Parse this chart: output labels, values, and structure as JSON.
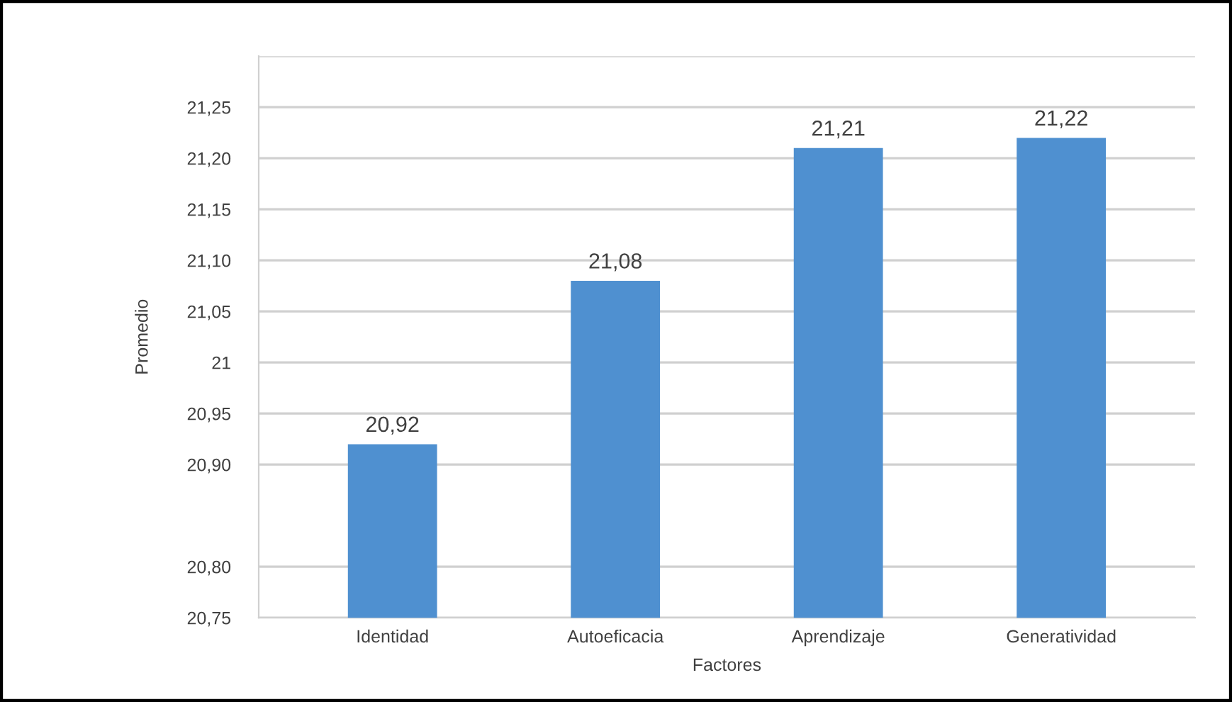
{
  "chart_data": {
    "type": "bar",
    "xlabel": "Factores",
    "ylabel": "Promedio",
    "categories": [
      "Identidad",
      "Autoeficacia",
      "Aprendizaje",
      "Generatividad"
    ],
    "values": [
      20.92,
      21.08,
      21.21,
      21.22
    ],
    "value_labels": [
      "20,92",
      "21,08",
      "21,21",
      "21,22"
    ],
    "color": "#4f90d0",
    "ylim": [
      20.75,
      21.3
    ],
    "yticks": [
      {
        "value": 20.75,
        "label": "20,75"
      },
      {
        "value": 20.8,
        "label": "20,80"
      },
      {
        "value": 20.9,
        "label": "20,90"
      },
      {
        "value": 20.95,
        "label": "20,95"
      },
      21,
      {
        "value": 21.05,
        "label": "21,05"
      },
      {
        "value": 21.1,
        "label": "21,10"
      },
      {
        "value": 21.15,
        "label": "21,15"
      },
      {
        "value": 21.2,
        "label": "21,20"
      },
      {
        "value": 21.25,
        "label": "21,25"
      },
      {
        "value": 21.3,
        "label": null
      }
    ],
    "grid": "y"
  }
}
